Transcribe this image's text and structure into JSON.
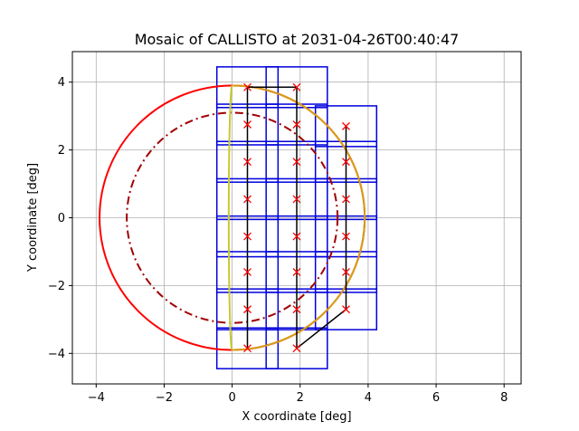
{
  "chart_data": {
    "type": "mosaic-plot",
    "title": "Mosaic of CALLISTO at 2031-04-26T00:40:47",
    "xlabel": "X coordinate [deg]",
    "ylabel": "Y coordinate [deg]",
    "xlim": [
      -4.7,
      8.5
    ],
    "ylim": [
      -4.9,
      4.9
    ],
    "xticks": [
      -4,
      -2,
      0,
      2,
      4,
      6,
      8
    ],
    "yticks": [
      -4,
      -2,
      0,
      2,
      4
    ],
    "grid": true,
    "colors": {
      "limb": "#ff0000",
      "inner_circle": "#a00000",
      "terminator": "#d4a017",
      "night_edge": "#c8c832",
      "tiles": "#0000dd",
      "path": "#000000",
      "centers": "#ff0000"
    },
    "limb_circle": {
      "cx": 0.0,
      "cy": 0.0,
      "r": 3.9
    },
    "inner_circle": {
      "cx": 0.0,
      "cy": 0.0,
      "r": 3.1
    },
    "terminator_ellipse": {
      "cx": 0.0,
      "cy": 0.0,
      "rx": 3.9,
      "ry": 3.9,
      "rx_inner": 0.1
    },
    "tile_half_width": 0.9,
    "tile_half_height": 0.6,
    "columns": [
      {
        "x": 0.45,
        "ys": [
          -3.85,
          -2.7,
          -1.6,
          -0.55,
          0.55,
          1.65,
          2.75,
          3.85
        ]
      },
      {
        "x": 1.9,
        "ys": [
          3.85,
          2.75,
          1.65,
          0.55,
          -0.55,
          -1.6,
          -2.7,
          -3.85
        ]
      },
      {
        "x": 3.35,
        "ys": [
          -2.7,
          -1.6,
          -0.55,
          0.55,
          1.65,
          2.7
        ]
      }
    ],
    "path_order": [
      [
        0.45,
        -3.85
      ],
      [
        0.45,
        -2.7
      ],
      [
        0.45,
        -1.6
      ],
      [
        0.45,
        -0.55
      ],
      [
        0.45,
        0.55
      ],
      [
        0.45,
        1.65
      ],
      [
        0.45,
        2.75
      ],
      [
        0.45,
        3.85
      ],
      [
        1.9,
        3.85
      ],
      [
        1.9,
        2.75
      ],
      [
        1.9,
        1.65
      ],
      [
        1.9,
        0.55
      ],
      [
        1.9,
        -0.55
      ],
      [
        1.9,
        -1.6
      ],
      [
        1.9,
        -2.7
      ],
      [
        1.9,
        -3.85
      ],
      [
        3.35,
        -2.7
      ],
      [
        3.35,
        -1.6
      ],
      [
        3.35,
        -0.55
      ],
      [
        3.35,
        0.55
      ],
      [
        3.35,
        1.65
      ],
      [
        3.35,
        2.7
      ]
    ]
  }
}
